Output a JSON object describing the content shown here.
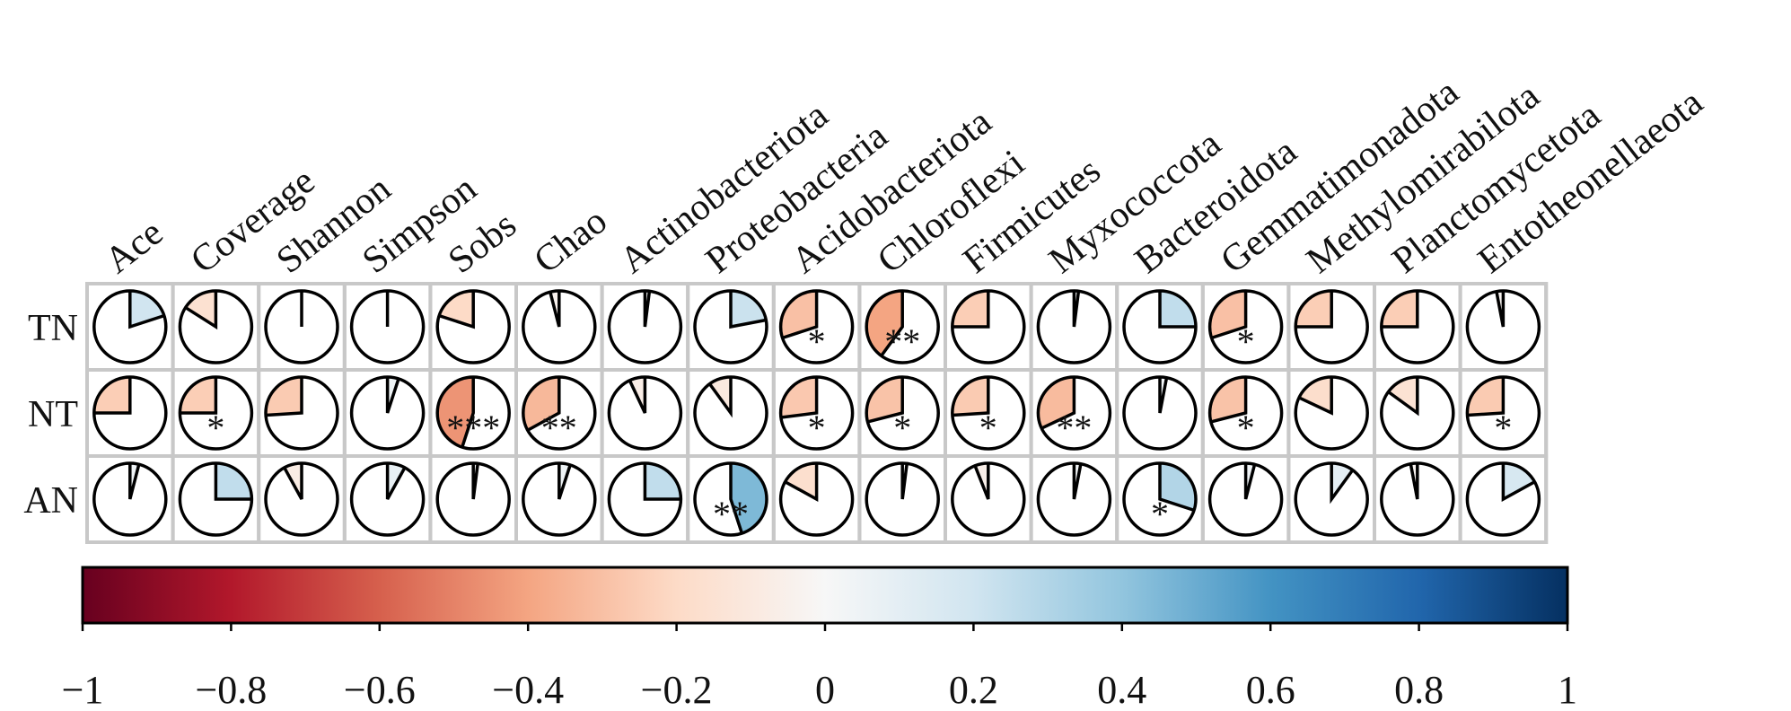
{
  "chart_data": {
    "type": "heatmap",
    "subtype": "pie-correlation-matrix",
    "columns": [
      "Ace",
      "Coverage",
      "Shannon",
      "Simpson",
      "Sobs",
      "Chao",
      "Actinobacteriota",
      "Proteobacteria",
      "Acidobacteriota",
      "Chloroflexi",
      "Firmicutes",
      "Myxococcota",
      "Bacteroidota",
      "Gemmatimonadota",
      "Methylomirabilota",
      "Planctomycetota",
      "Entotheonellaeota"
    ],
    "rows": [
      "TN",
      "NT",
      "AN"
    ],
    "values": [
      [
        0.2,
        -0.16,
        0.0,
        0.0,
        -0.2,
        -0.04,
        0.02,
        0.22,
        -0.3,
        -0.4,
        -0.25,
        0.02,
        0.25,
        -0.3,
        -0.25,
        -0.25,
        -0.03
      ],
      [
        -0.25,
        -0.25,
        -0.26,
        0.05,
        -0.45,
        -0.33,
        -0.07,
        -0.1,
        -0.27,
        -0.29,
        -0.26,
        -0.32,
        0.03,
        -0.29,
        -0.18,
        -0.15,
        -0.26
      ],
      [
        0.04,
        0.25,
        -0.08,
        0.08,
        0.02,
        0.05,
        0.25,
        0.45,
        -0.17,
        0.02,
        -0.06,
        0.03,
        0.3,
        0.04,
        0.1,
        -0.03,
        0.17
      ]
    ],
    "significance": [
      [
        "",
        "",
        "",
        "",
        "",
        "",
        "",
        "",
        "*",
        "**",
        "",
        "",
        "",
        "*",
        "",
        "",
        ""
      ],
      [
        "",
        "*",
        "",
        "",
        "***",
        "**",
        "",
        "",
        "*",
        "*",
        "*",
        "**",
        "",
        "*",
        "",
        "",
        "*"
      ],
      [
        "",
        "",
        "",
        "",
        "",
        "",
        "",
        "**",
        "",
        "",
        "",
        "",
        "*",
        "",
        "",
        "",
        ""
      ]
    ],
    "colorbar": {
      "min": -1,
      "max": 1,
      "ticks": [
        -1,
        -0.8,
        -0.6,
        -0.4,
        -0.2,
        0,
        0.2,
        0.4,
        0.6,
        0.8,
        1
      ],
      "tick_labels": [
        "−1",
        "−0.8",
        "−0.6",
        "−0.4",
        "−0.2",
        "0",
        "0.2",
        "0.4",
        "0.6",
        "0.8",
        "1"
      ],
      "colormap": "RdBu",
      "stops": [
        "#67001f",
        "#b2182b",
        "#d6604d",
        "#f4a582",
        "#fddbc7",
        "#f7f7f7",
        "#d1e5f0",
        "#92c5de",
        "#4393c3",
        "#2166ac",
        "#053061"
      ]
    },
    "grid_color": "#c8c8c8"
  }
}
